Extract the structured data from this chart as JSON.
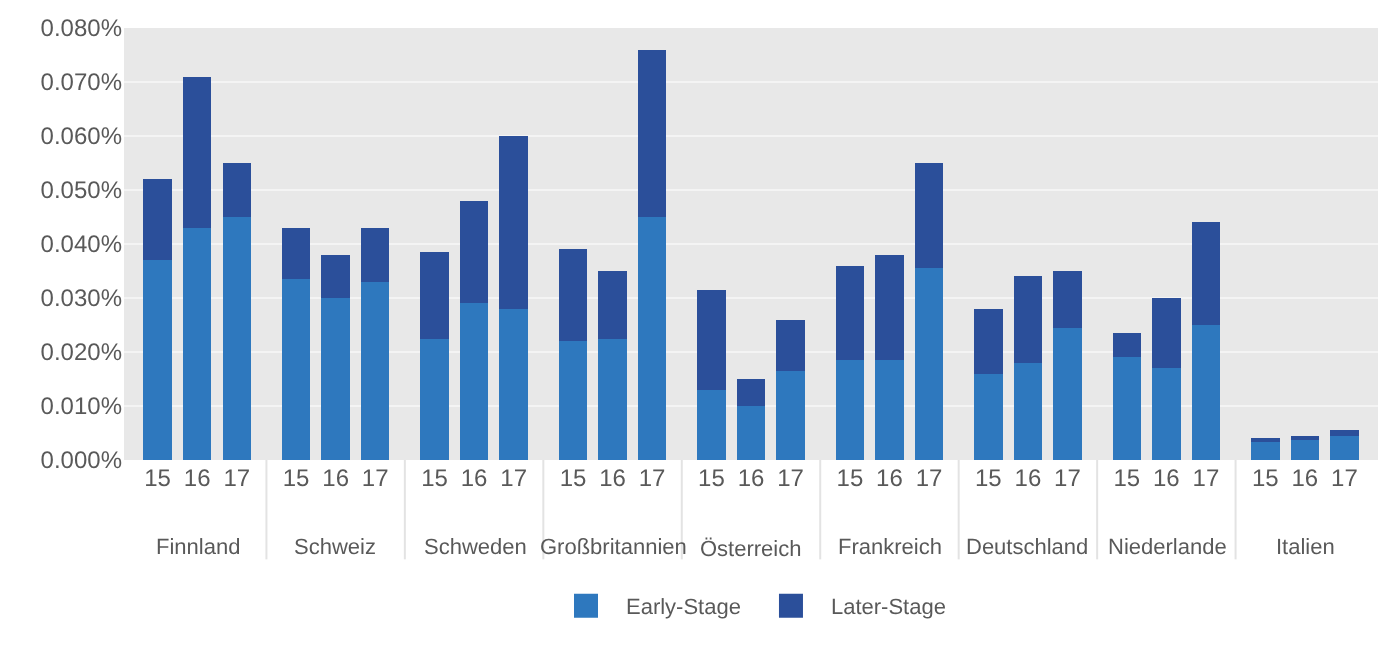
{
  "chart_data": {
    "type": "bar",
    "stacked": true,
    "grid": "y",
    "legend": "bottom",
    "categories": [
      "15",
      "16",
      "17",
      "15",
      "16",
      "17",
      "15",
      "16",
      "17",
      "15",
      "16",
      "17",
      "15",
      "16",
      "17",
      "15",
      "16",
      "17",
      "15",
      "16",
      "17",
      "15",
      "16",
      "17",
      "15",
      "16",
      "17"
    ],
    "annotations": [
      "Finnland",
      "Schweiz",
      "Schweden",
      "Großbritannien",
      "Österreich",
      "Frankreich",
      "Deutschland",
      "Niederlande",
      "Italien"
    ],
    "ylim": [
      0,
      0.08
    ],
    "yticks": [
      {
        "value": 0,
        "label": "0.000%"
      },
      {
        "value": 0.01,
        "label": "0.010%"
      },
      {
        "value": 0.02,
        "label": "0.020%"
      },
      {
        "value": 0.03,
        "label": "0.030%"
      },
      {
        "value": 0.04,
        "label": "0.040%"
      },
      {
        "value": 0.05,
        "label": "0.050%"
      },
      {
        "value": 0.06,
        "label": "0.060%"
      },
      {
        "value": 0.07,
        "label": "0.070%"
      },
      {
        "value": 0.08,
        "label": "0.080%"
      }
    ],
    "series": [
      {
        "name": "Early-Stage",
        "color": "#2e78be",
        "values": [
          0.037,
          0.043,
          0.045,
          0.0335,
          0.03,
          0.033,
          0.0225,
          0.029,
          0.028,
          0.022,
          0.0225,
          0.045,
          0.013,
          0.01,
          0.0165,
          0.0185,
          0.0185,
          0.0355,
          0.016,
          0.018,
          0.0245,
          0.019,
          0.017,
          0.025,
          0.0035,
          0.004,
          0.0045
        ]
      },
      {
        "name": "Later-Stage",
        "color": "#2b4f9a",
        "values": [
          0.015,
          0.028,
          0.01,
          0.0095,
          0.008,
          0.01,
          0.016,
          0.019,
          0.032,
          0.017,
          0.0125,
          0.031,
          0.0185,
          0.005,
          0.0095,
          0.0175,
          0.0195,
          0.0195,
          0.012,
          0.016,
          0.0105,
          0.0045,
          0.013,
          0.019,
          0.0003,
          0.0003,
          0.001
        ]
      }
    ]
  }
}
